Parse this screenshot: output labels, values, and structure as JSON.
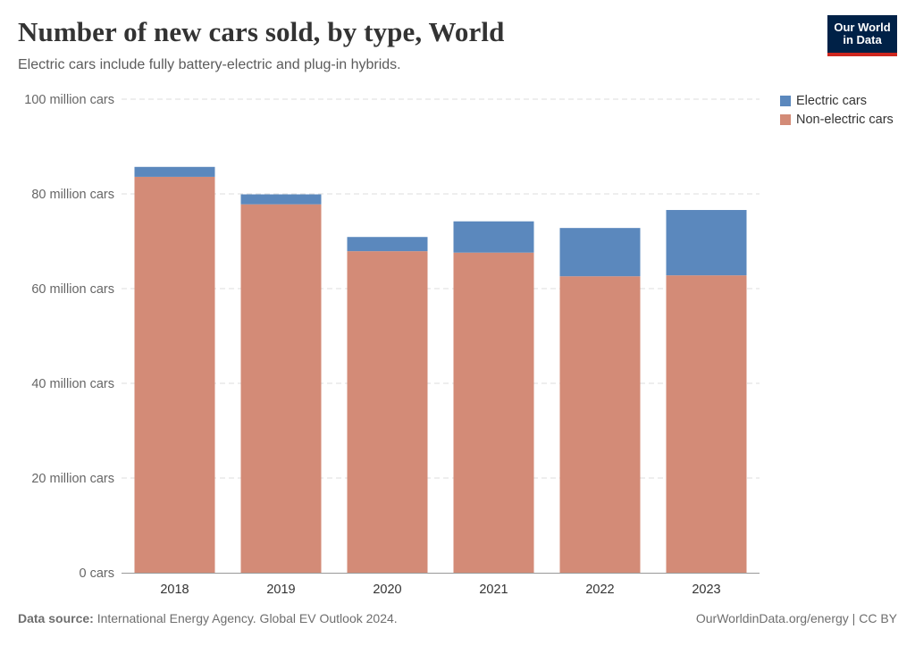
{
  "header": {
    "title": "Number of new cars sold, by type, World",
    "subtitle": "Electric cars include fully battery-electric and plug-in hybrids.",
    "logo_line1": "Our World",
    "logo_line2": "in Data"
  },
  "legend": {
    "electric_label": "Electric cars",
    "nonelectric_label": "Non-electric cars"
  },
  "footer": {
    "source_label": "Data source:",
    "source_text": "International Energy Agency. Global EV Outlook 2024.",
    "credit": "OurWorldinData.org/energy | CC BY"
  },
  "colors": {
    "electric": "#5b88bd",
    "nonelectric": "#d38b77",
    "grid": "#dddddd",
    "axis_text": "#666666"
  },
  "chart_data": {
    "type": "bar",
    "stacked": true,
    "categories": [
      "2018",
      "2019",
      "2020",
      "2021",
      "2022",
      "2023"
    ],
    "series": [
      {
        "name": "Non-electric cars",
        "values": [
          83.6,
          77.8,
          67.9,
          67.6,
          62.6,
          62.8
        ]
      },
      {
        "name": "Electric cars",
        "values": [
          2.1,
          2.1,
          3.0,
          6.6,
          10.2,
          13.8
        ]
      }
    ],
    "yticks": [
      {
        "value": 0,
        "label": "0 cars"
      },
      {
        "value": 20,
        "label": "20 million cars"
      },
      {
        "value": 40,
        "label": "40 million cars"
      },
      {
        "value": 60,
        "label": "60 million cars"
      },
      {
        "value": 80,
        "label": "80 million cars"
      },
      {
        "value": 100,
        "label": "100 million cars"
      }
    ],
    "ylim": [
      0,
      100
    ],
    "grid": true,
    "legend_position": "top-right"
  }
}
